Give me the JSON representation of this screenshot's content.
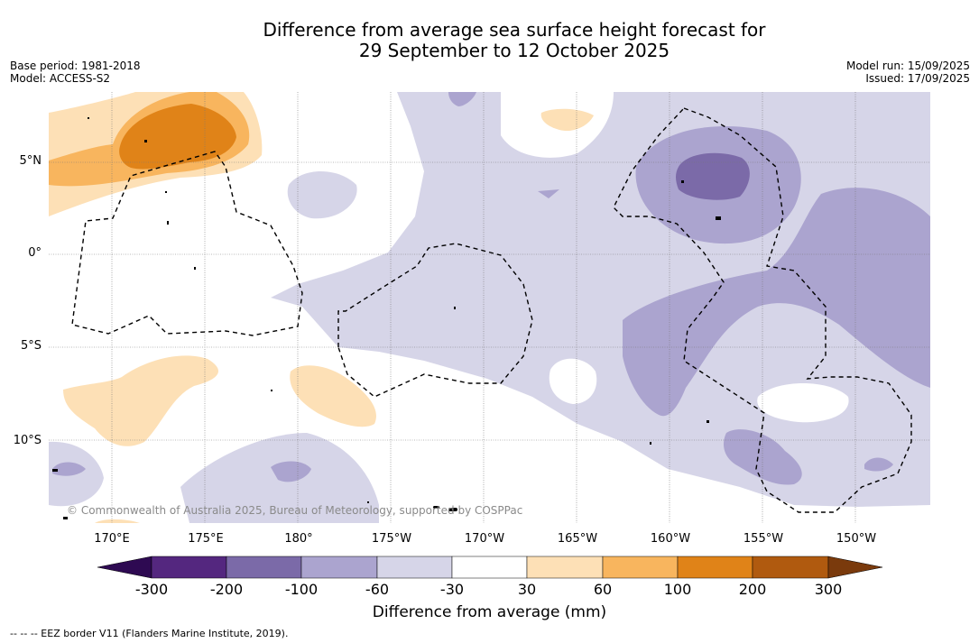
{
  "title": {
    "line1": "Difference from average sea surface height forecast for",
    "line2": "29 September to 12 October 2025"
  },
  "meta_left": {
    "base_period": "Base period: 1981-2018",
    "model": "Model: ACCESS-S2"
  },
  "meta_right": {
    "model_run": "Model run: 15/09/2025",
    "issued": "Issued: 17/09/2025"
  },
  "latitude_labels": [
    "5°N",
    "0°",
    "5°S",
    "10°S"
  ],
  "longitude_labels": [
    "170°E",
    "175°E",
    "180°",
    "175°W",
    "170°W",
    "165°W",
    "160°W",
    "155°W",
    "150°W"
  ],
  "copyright": "© Commonwealth of Australia 2025, Bureau of Meteorology, supported by COSPPac",
  "colorbar": {
    "title": "Difference from average (mm)",
    "ticks": [
      "-300",
      "-200",
      "-100",
      "-60",
      "-30",
      "30",
      "60",
      "100",
      "200",
      "300"
    ],
    "colors": [
      "#2e0a52",
      "#54277f",
      "#7b6aa8",
      "#aba4cf",
      "#d6d5e8",
      "#ffffff",
      "#fde0b6",
      "#f8b55e",
      "#e08318",
      "#b05a0f",
      "#7a3a0c"
    ]
  },
  "footnote": "-- -- -- EEZ border V11 (Flanders Marine Institute, 2019)."
}
